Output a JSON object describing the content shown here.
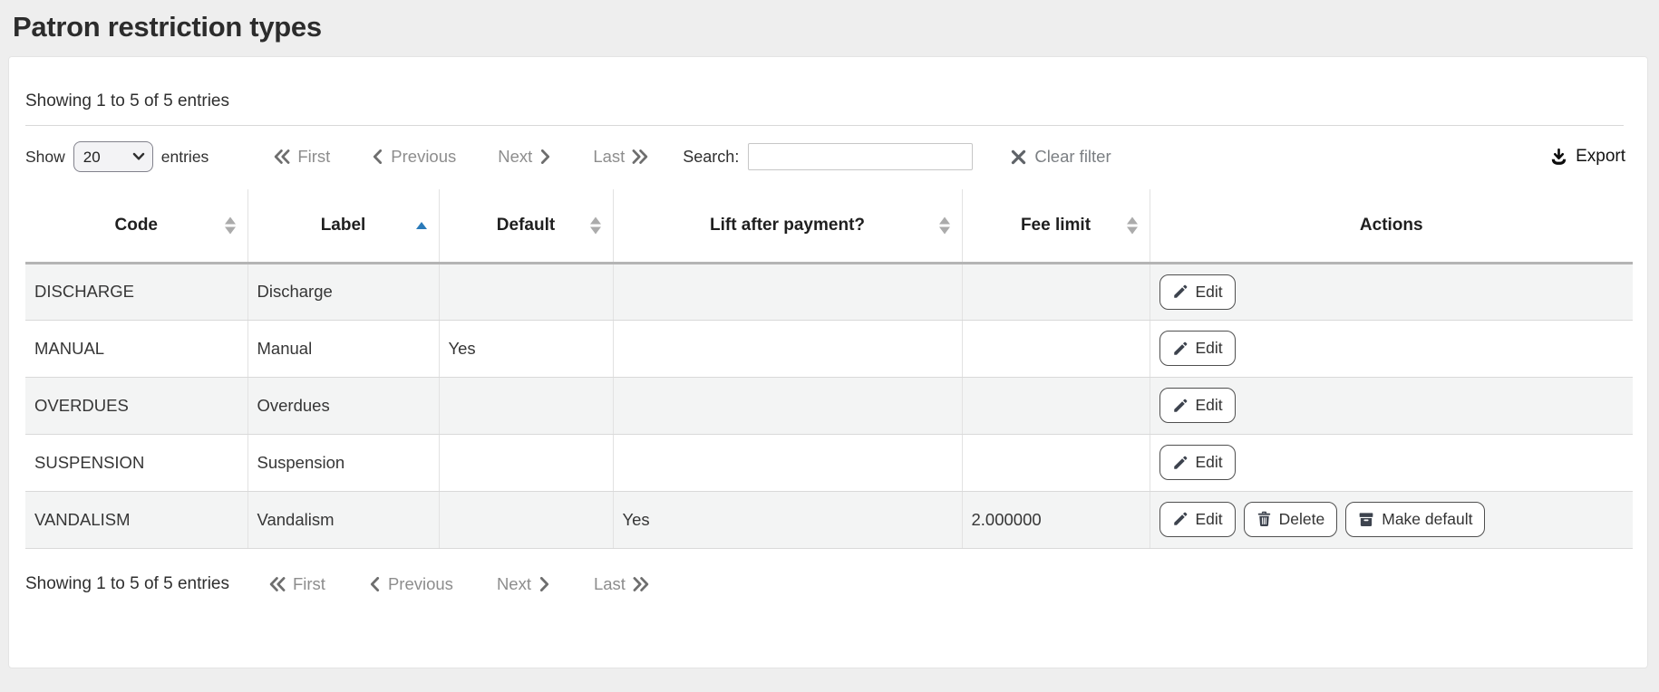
{
  "page": {
    "title": "Patron restriction types"
  },
  "summary": {
    "top": "Showing 1 to 5 of 5 entries",
    "bottom": "Showing 1 to 5 of 5 entries"
  },
  "length_menu": {
    "prefix": "Show",
    "selected": "20",
    "suffix": "entries"
  },
  "pagination": {
    "links": [
      {
        "label": "First",
        "icon": "chevrons-left-icon",
        "icon_pos": "left"
      },
      {
        "label": "Previous",
        "icon": "chevron-left-icon",
        "icon_pos": "left"
      },
      {
        "label": "Next",
        "icon": "chevron-right-icon",
        "icon_pos": "right"
      },
      {
        "label": "Last",
        "icon": "chevrons-right-icon",
        "icon_pos": "right"
      }
    ]
  },
  "search": {
    "label": "Search:",
    "value": "",
    "placeholder": ""
  },
  "clear_filter": {
    "label": "Clear filter",
    "icon": "x-icon"
  },
  "export": {
    "label": "Export",
    "icon": "download-icon"
  },
  "table": {
    "columns": [
      {
        "label": "Code",
        "sort": "both"
      },
      {
        "label": "Label",
        "sort": "asc"
      },
      {
        "label": "Default",
        "sort": "both"
      },
      {
        "label": "Lift after payment?",
        "sort": "both"
      },
      {
        "label": "Fee limit",
        "sort": "both"
      },
      {
        "label": "Actions",
        "sort": "none"
      }
    ],
    "action_icons": {
      "Edit": "pencil-icon",
      "Delete": "trash-icon",
      "Make default": "archive-icon"
    },
    "rows": [
      {
        "cells": [
          "DISCHARGE",
          "Discharge",
          "",
          "",
          ""
        ],
        "actions": [
          "Edit"
        ]
      },
      {
        "cells": [
          "MANUAL",
          "Manual",
          "Yes",
          "",
          ""
        ],
        "actions": [
          "Edit"
        ]
      },
      {
        "cells": [
          "OVERDUES",
          "Overdues",
          "",
          "",
          ""
        ],
        "actions": [
          "Edit"
        ]
      },
      {
        "cells": [
          "SUSPENSION",
          "Suspension",
          "",
          "",
          ""
        ],
        "actions": [
          "Edit"
        ]
      },
      {
        "cells": [
          "VANDALISM",
          "Vandalism",
          "",
          "Yes",
          "2.000000"
        ],
        "actions": [
          "Edit",
          "Delete",
          "Make default"
        ]
      }
    ]
  },
  "colors": {
    "sort_active": "#2a7ab9",
    "stripe": "#f3f4f4",
    "pagination_gray": "#8d8d8d",
    "button_border": "#4f4f4f"
  }
}
